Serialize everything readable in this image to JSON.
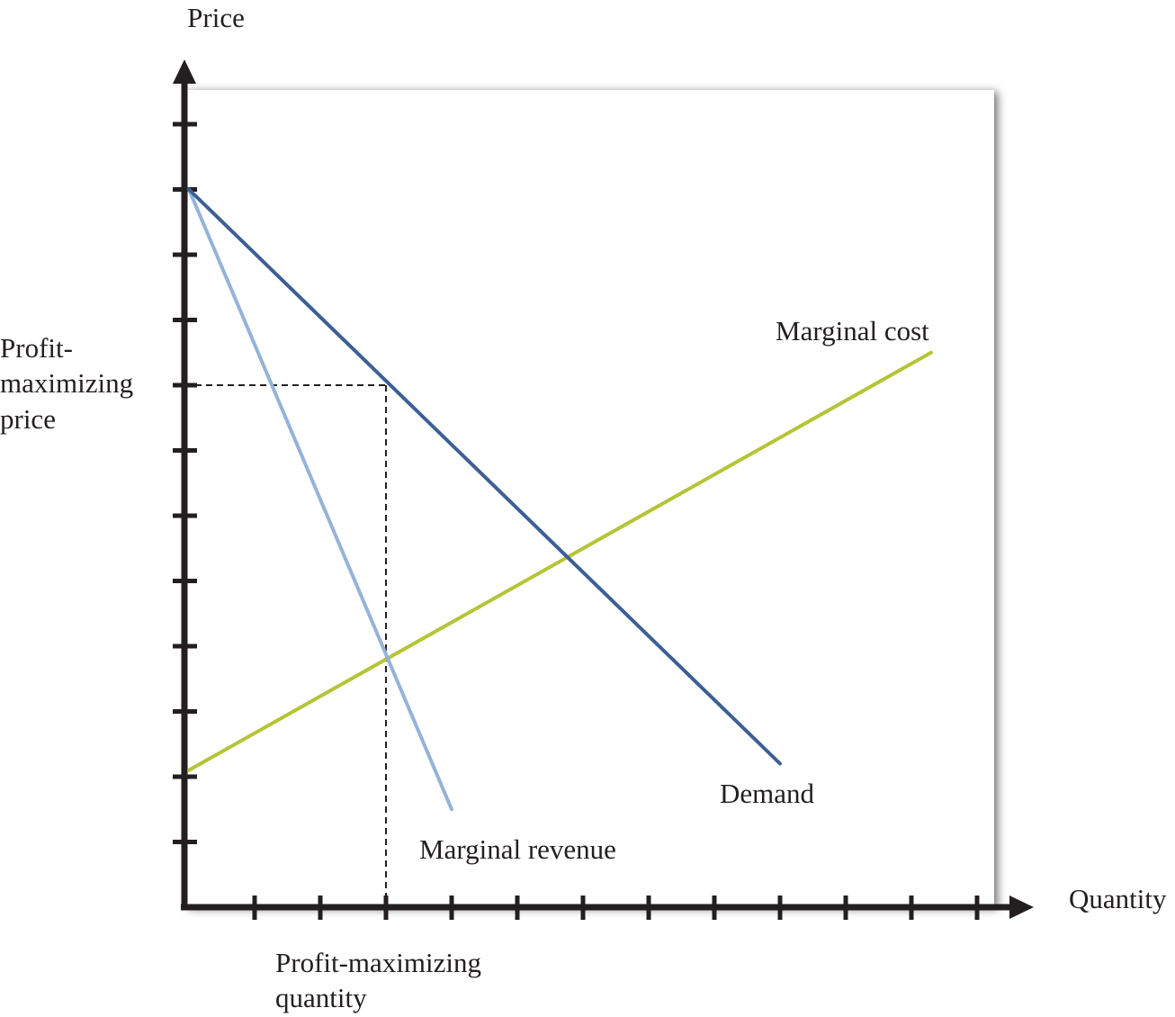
{
  "chart_data": {
    "type": "line",
    "ylabel": "Price",
    "xlabel": "Quantity",
    "xlim": [
      0,
      12
    ],
    "ylim": [
      0,
      12
    ],
    "x_ticks": [
      1,
      2,
      3,
      4,
      5,
      6,
      7,
      8,
      9,
      10,
      11,
      12
    ],
    "y_ticks": [
      1,
      2,
      3,
      4,
      5,
      6,
      7,
      8,
      9,
      10,
      11,
      12
    ],
    "tick_labels_shown": false,
    "grid": false,
    "legend": "none",
    "series": [
      {
        "name": "Demand",
        "color": "#3c5f94",
        "x": [
          0,
          9
        ],
        "y": [
          11,
          2.2
        ]
      },
      {
        "name": "Marginal revenue",
        "color": "#95b3d9",
        "x": [
          0,
          4
        ],
        "y": [
          11,
          1.5
        ]
      },
      {
        "name": "Marginal cost",
        "color": "#b5c435",
        "x": [
          0,
          11.3
        ],
        "y": [
          2.1,
          8.5
        ]
      }
    ],
    "annotations": {
      "price_label": [
        "Profit-",
        "maximizing",
        "price"
      ],
      "quantity_label": [
        "Profit-maximizing",
        "quantity"
      ]
    },
    "reference_point": {
      "x": 3,
      "y": 8
    }
  }
}
